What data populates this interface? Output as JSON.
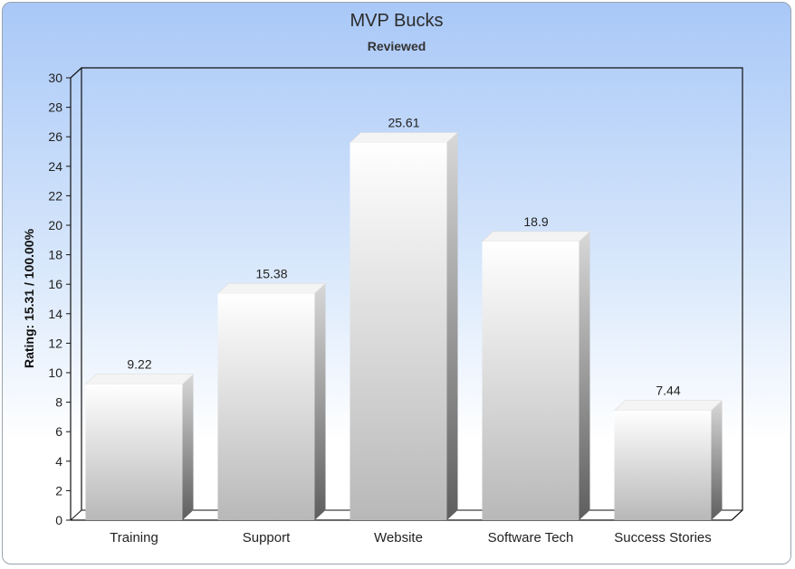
{
  "chart_data": {
    "type": "bar",
    "title": "MVP Bucks",
    "subtitle": "Reviewed",
    "xlabel": "",
    "ylabel": "Rating: 15.31 / 100.00%",
    "ylim": [
      0,
      30
    ],
    "yticks": [
      0,
      2,
      4,
      6,
      8,
      10,
      12,
      14,
      16,
      18,
      20,
      22,
      24,
      26,
      28,
      30
    ],
    "categories": [
      "Training",
      "Support",
      "Website",
      "Software Tech",
      "Success Stories"
    ],
    "values": [
      9.22,
      15.38,
      25.61,
      18.9,
      7.44
    ],
    "data_labels": [
      "9.22",
      "15.38",
      "25.61",
      "18.9",
      "7.44"
    ],
    "grid": false,
    "legend": "none",
    "style": "3d-bar",
    "colors": {
      "bar_top": "#ffffff",
      "bar_bottom": "#b8b8b8",
      "bar_side": "#6e6e6e",
      "background_top": "#a9c8f7",
      "background_bottom": "#ffffff"
    }
  }
}
